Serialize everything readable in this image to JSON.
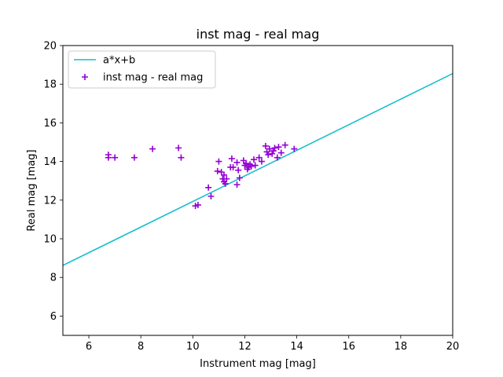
{
  "chart_data": {
    "type": "scatter",
    "title": "inst mag - real mag",
    "xlabel": "Instrument mag [mag]",
    "ylabel": "Real mag [mag]",
    "xlim": [
      5,
      20
    ],
    "ylim": [
      5,
      20
    ],
    "xticks": [
      6,
      8,
      10,
      12,
      14,
      16,
      18,
      20
    ],
    "yticks": [
      6,
      8,
      10,
      12,
      14,
      16,
      18,
      20
    ],
    "grid": false,
    "legend_position": "upper-left",
    "series": [
      {
        "name": "a*x+b",
        "kind": "line",
        "color": "#17becf",
        "x": [
          5,
          20
        ],
        "y": [
          8.62,
          18.55
        ]
      },
      {
        "name": "inst mag - real mag",
        "kind": "scatter",
        "marker": "plus",
        "color": "#9400d3",
        "x": [
          6.75,
          6.75,
          7.0,
          7.75,
          8.45,
          9.45,
          9.55,
          10.1,
          10.2,
          10.6,
          10.7,
          10.95,
          11.0,
          11.1,
          11.15,
          11.2,
          11.2,
          11.25,
          11.3,
          11.45,
          11.5,
          11.55,
          11.7,
          11.7,
          11.75,
          11.8,
          11.95,
          12.0,
          12.05,
          12.1,
          12.15,
          12.2,
          12.25,
          12.35,
          12.4,
          12.55,
          12.65,
          12.8,
          12.85,
          12.9,
          12.95,
          13.05,
          13.1,
          13.15,
          13.25,
          13.3,
          13.4,
          13.55,
          13.9
        ],
        "y": [
          14.35,
          14.2,
          14.2,
          14.2,
          14.65,
          14.7,
          14.2,
          11.7,
          11.75,
          12.65,
          12.2,
          13.5,
          14.0,
          13.45,
          13.1,
          13.3,
          12.95,
          12.85,
          13.1,
          13.7,
          14.15,
          13.7,
          12.8,
          13.95,
          13.55,
          13.15,
          14.05,
          13.8,
          13.9,
          13.6,
          13.7,
          13.85,
          13.75,
          14.1,
          13.8,
          14.2,
          14.0,
          14.8,
          14.5,
          14.35,
          14.65,
          14.4,
          14.55,
          14.7,
          14.2,
          14.75,
          14.45,
          14.85,
          14.65
        ]
      }
    ]
  }
}
